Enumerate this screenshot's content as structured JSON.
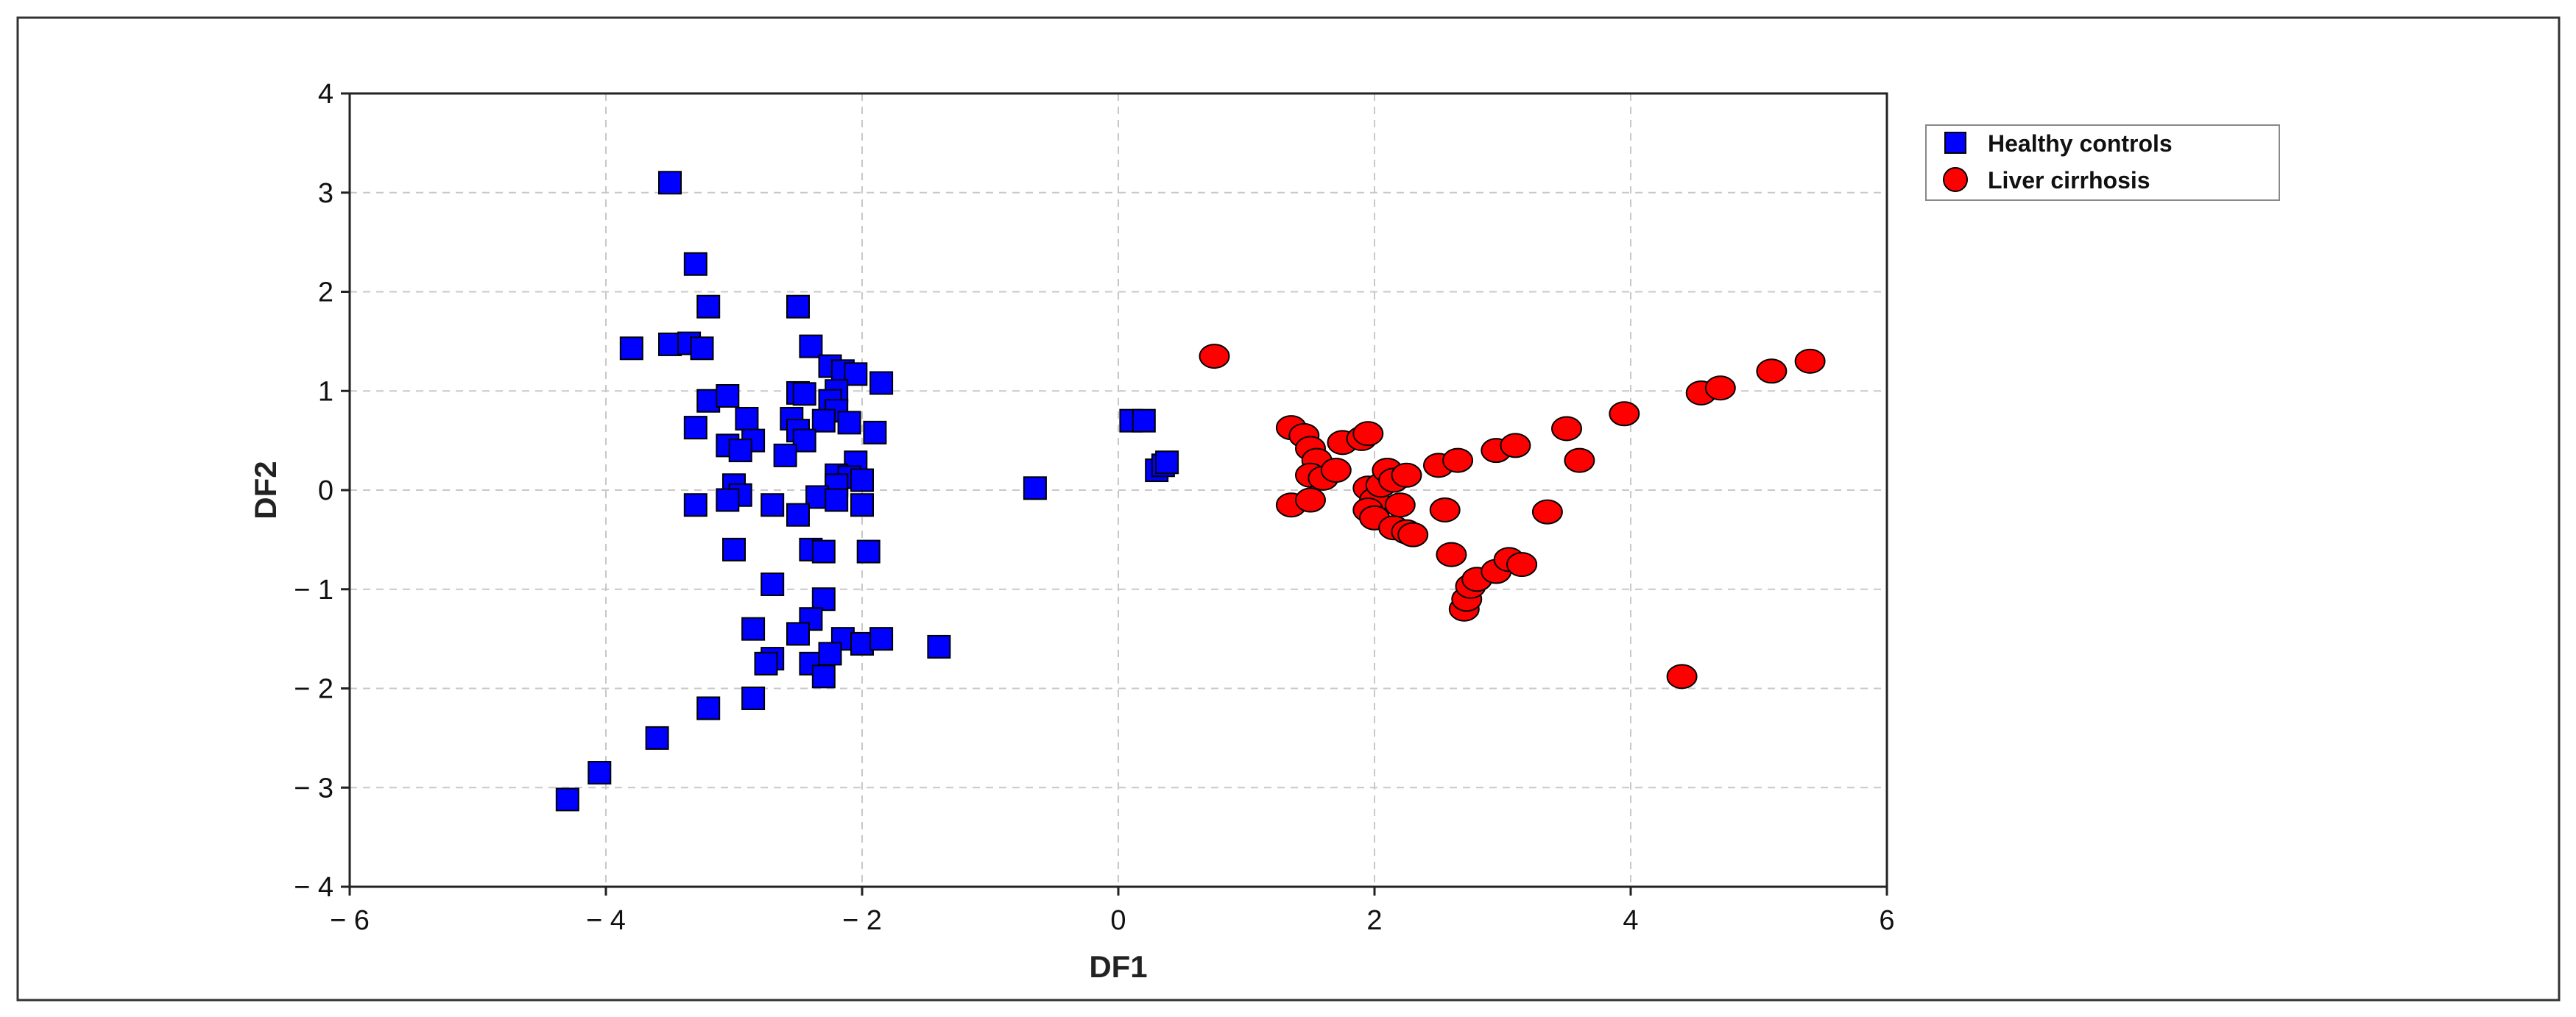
{
  "chart_data": {
    "type": "scatter",
    "title": "",
    "xlabel": "DF1",
    "ylabel": "DF2",
    "xlim": [
      -6,
      6
    ],
    "ylim": [
      -4,
      4
    ],
    "x_ticks": [
      -6,
      -4,
      -2,
      0,
      2,
      4,
      6
    ],
    "y_ticks": [
      -4,
      -3,
      -2,
      -1,
      0,
      1,
      2,
      3,
      4
    ],
    "x_tick_labels": [
      "− 6",
      "− 4",
      "− 2",
      "0",
      "2",
      "4",
      "6"
    ],
    "y_tick_labels": [
      "− 4",
      "− 3",
      "− 2",
      "− 1",
      "0",
      "1",
      "2",
      "3",
      "4"
    ],
    "grid": true,
    "legend_position": "top-right-outside",
    "series": [
      {
        "name": "Healthy controls",
        "marker": "square",
        "color": "#0000ff",
        "points": [
          [
            -3.5,
            3.1
          ],
          [
            -3.3,
            2.28
          ],
          [
            -3.2,
            1.85
          ],
          [
            -2.5,
            1.85
          ],
          [
            -3.8,
            1.43
          ],
          [
            -3.5,
            1.47
          ],
          [
            -3.35,
            1.48
          ],
          [
            -3.25,
            1.43
          ],
          [
            -2.4,
            1.45
          ],
          [
            -2.25,
            1.25
          ],
          [
            -2.15,
            1.2
          ],
          [
            -2.05,
            1.17
          ],
          [
            -1.85,
            1.08
          ],
          [
            -2.2,
            1.0
          ],
          [
            -2.5,
            0.98
          ],
          [
            -2.45,
            0.97
          ],
          [
            -3.2,
            0.9
          ],
          [
            -3.05,
            0.95
          ],
          [
            -2.25,
            0.9
          ],
          [
            -2.2,
            0.8
          ],
          [
            -2.9,
            0.72
          ],
          [
            -2.55,
            0.72
          ],
          [
            -2.3,
            0.7
          ],
          [
            -2.1,
            0.68
          ],
          [
            -3.3,
            0.63
          ],
          [
            -2.5,
            0.6
          ],
          [
            -1.9,
            0.58
          ],
          [
            -2.85,
            0.5
          ],
          [
            -2.45,
            0.5
          ],
          [
            -3.05,
            0.45
          ],
          [
            -2.95,
            0.4
          ],
          [
            -2.6,
            0.35
          ],
          [
            -2.05,
            0.28
          ],
          [
            -2.2,
            0.15
          ],
          [
            -2.1,
            0.13
          ],
          [
            -2.0,
            0.1
          ],
          [
            -3.0,
            0.05
          ],
          [
            -2.2,
            0.05
          ],
          [
            -2.95,
            -0.05
          ],
          [
            -3.05,
            -0.1
          ],
          [
            -2.35,
            -0.07
          ],
          [
            -2.2,
            -0.1
          ],
          [
            -3.3,
            -0.15
          ],
          [
            -2.7,
            -0.15
          ],
          [
            -2.5,
            -0.25
          ],
          [
            -2.0,
            -0.15
          ],
          [
            -3.0,
            -0.6
          ],
          [
            -2.4,
            -0.6
          ],
          [
            -2.3,
            -0.62
          ],
          [
            -1.95,
            -0.62
          ],
          [
            -2.7,
            -0.95
          ],
          [
            -2.3,
            -1.1
          ],
          [
            -2.4,
            -1.3
          ],
          [
            -2.5,
            -1.45
          ],
          [
            -2.85,
            -1.4
          ],
          [
            -2.15,
            -1.5
          ],
          [
            -2.0,
            -1.55
          ],
          [
            -1.85,
            -1.5
          ],
          [
            -2.7,
            -1.7
          ],
          [
            -2.75,
            -1.75
          ],
          [
            -2.4,
            -1.75
          ],
          [
            -2.25,
            -1.65
          ],
          [
            -2.3,
            -1.88
          ],
          [
            -2.85,
            -2.1
          ],
          [
            -3.2,
            -2.2
          ],
          [
            -3.6,
            -2.5
          ],
          [
            -4.05,
            -2.85
          ],
          [
            -4.3,
            -3.12
          ],
          [
            -1.4,
            -1.58
          ],
          [
            -0.65,
            0.02
          ],
          [
            0.1,
            0.7
          ],
          [
            0.2,
            0.7
          ],
          [
            0.3,
            0.2
          ],
          [
            0.35,
            0.25
          ],
          [
            0.38,
            0.28
          ]
        ]
      },
      {
        "name": "Liver cirrhosis",
        "marker": "circle",
        "color": "#ff0000",
        "points": [
          [
            0.75,
            1.35
          ],
          [
            1.35,
            0.63
          ],
          [
            1.45,
            0.55
          ],
          [
            1.5,
            0.42
          ],
          [
            1.55,
            0.3
          ],
          [
            1.5,
            0.15
          ],
          [
            1.6,
            0.12
          ],
          [
            1.7,
            0.2
          ],
          [
            1.75,
            0.48
          ],
          [
            1.9,
            0.52
          ],
          [
            1.95,
            0.57
          ],
          [
            1.95,
            0.02
          ],
          [
            2.0,
            -0.1
          ],
          [
            1.95,
            -0.2
          ],
          [
            2.0,
            -0.28
          ],
          [
            2.05,
            0.05
          ],
          [
            2.1,
            0.2
          ],
          [
            2.15,
            0.1
          ],
          [
            2.25,
            0.15
          ],
          [
            2.2,
            -0.15
          ],
          [
            2.15,
            -0.38
          ],
          [
            2.25,
            -0.42
          ],
          [
            2.3,
            -0.45
          ],
          [
            1.35,
            -0.15
          ],
          [
            1.5,
            -0.1
          ],
          [
            2.5,
            0.25
          ],
          [
            2.55,
            -0.2
          ],
          [
            2.65,
            0.3
          ],
          [
            2.6,
            -0.65
          ],
          [
            2.7,
            -1.2
          ],
          [
            2.72,
            -1.1
          ],
          [
            2.75,
            -0.97
          ],
          [
            2.8,
            -0.9
          ],
          [
            2.95,
            -0.82
          ],
          [
            3.05,
            -0.7
          ],
          [
            3.15,
            -0.75
          ],
          [
            2.95,
            0.4
          ],
          [
            3.1,
            0.45
          ],
          [
            3.35,
            -0.22
          ],
          [
            3.5,
            0.62
          ],
          [
            3.6,
            0.3
          ],
          [
            3.95,
            0.77
          ],
          [
            4.4,
            -1.88
          ],
          [
            4.55,
            0.98
          ],
          [
            4.7,
            1.03
          ],
          [
            5.1,
            1.2
          ],
          [
            5.4,
            1.3
          ]
        ]
      }
    ]
  }
}
